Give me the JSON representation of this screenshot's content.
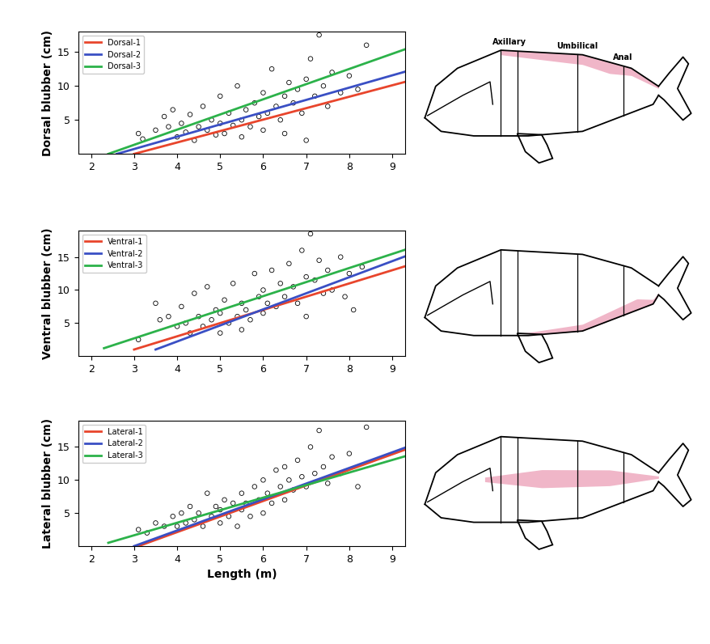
{
  "chart_data": [
    {
      "type": "scatter",
      "y_label": "Dorsal blubber (cm)",
      "xlim": [
        1.7,
        9.3
      ],
      "ylim": [
        0,
        18
      ],
      "xticks": [
        2,
        3,
        4,
        5,
        6,
        7,
        8,
        9
      ],
      "yticks": [
        5,
        10,
        15
      ],
      "legend": "upper left",
      "series": [
        {
          "type": "scatter",
          "color": "#000000",
          "marker": "circle",
          "x": [
            3.1,
            3.2,
            3.5,
            3.7,
            3.8,
            3.9,
            4.0,
            4.1,
            4.2,
            4.3,
            4.4,
            4.5,
            4.6,
            4.7,
            4.8,
            4.9,
            5.0,
            5.0,
            5.1,
            5.2,
            5.3,
            5.4,
            5.5,
            5.5,
            5.6,
            5.7,
            5.8,
            5.9,
            6.0,
            6.0,
            6.1,
            6.2,
            6.3,
            6.4,
            6.5,
            6.5,
            6.6,
            6.7,
            6.8,
            6.9,
            7.0,
            7.0,
            7.1,
            7.2,
            7.3,
            7.4,
            7.5,
            7.6,
            7.8,
            8.0,
            8.2,
            8.4
          ],
          "values": [
            3.0,
            2.2,
            3.5,
            5.5,
            4.0,
            6.5,
            2.5,
            4.5,
            3.2,
            5.8,
            2.0,
            4.0,
            7.0,
            3.5,
            5.0,
            2.8,
            4.5,
            8.5,
            3.0,
            6.0,
            4.2,
            10.0,
            5.0,
            2.5,
            6.5,
            4.0,
            7.5,
            5.5,
            3.5,
            9.0,
            6.0,
            12.5,
            7.0,
            5.0,
            8.5,
            3.0,
            10.5,
            7.5,
            9.5,
            6.0,
            11.0,
            2.0,
            14.0,
            8.5,
            17.5,
            10.0,
            7.0,
            12.0,
            9.0,
            11.5,
            9.5,
            16.0
          ]
        },
        {
          "name": "Dorsal-1",
          "type": "line",
          "color": "#e8452c",
          "line_style": "solid",
          "x": [
            3.0,
            9.3
          ],
          "values": [
            0,
            10.6
          ]
        },
        {
          "name": "Dorsal-2",
          "type": "line",
          "color": "#3a4fc4",
          "line_style": "solid",
          "x": [
            2.6,
            9.3
          ],
          "values": [
            0,
            12.1
          ]
        },
        {
          "name": "Dorsal-3",
          "type": "line",
          "color": "#2cb24a",
          "line_style": "solid",
          "x": [
            2.4,
            9.3
          ],
          "values": [
            0,
            15.4
          ]
        }
      ]
    },
    {
      "type": "scatter",
      "y_label": "Ventral blubber (cm)",
      "xlim": [
        1.7,
        9.3
      ],
      "ylim": [
        0,
        19
      ],
      "xticks": [
        2,
        3,
        4,
        5,
        6,
        7,
        8,
        9
      ],
      "yticks": [
        5,
        10,
        15
      ],
      "legend": "upper left",
      "series": [
        {
          "type": "scatter",
          "color": "#000000",
          "marker": "circle",
          "x": [
            3.1,
            3.5,
            3.6,
            3.8,
            4.0,
            4.1,
            4.2,
            4.3,
            4.4,
            4.5,
            4.6,
            4.7,
            4.8,
            4.9,
            5.0,
            5.0,
            5.1,
            5.2,
            5.3,
            5.4,
            5.5,
            5.5,
            5.6,
            5.7,
            5.8,
            5.9,
            6.0,
            6.0,
            6.1,
            6.2,
            6.3,
            6.4,
            6.5,
            6.6,
            6.7,
            6.8,
            6.9,
            7.0,
            7.0,
            7.1,
            7.2,
            7.3,
            7.4,
            7.5,
            7.6,
            7.8,
            7.9,
            8.0,
            8.1,
            8.3
          ],
          "values": [
            2.5,
            8.0,
            5.5,
            6.0,
            4.5,
            7.5,
            5.0,
            3.5,
            9.5,
            6.0,
            4.5,
            10.5,
            5.5,
            7.0,
            3.5,
            6.5,
            8.5,
            5.0,
            11.0,
            6.0,
            4.0,
            8.0,
            7.0,
            5.5,
            12.5,
            9.0,
            6.5,
            10.0,
            8.0,
            13.0,
            7.5,
            11.0,
            9.0,
            14.0,
            10.5,
            8.0,
            16.0,
            12.0,
            6.0,
            18.5,
            11.5,
            14.5,
            9.5,
            13.0,
            10.0,
            15.0,
            9.0,
            12.5,
            7.0,
            13.5
          ]
        },
        {
          "name": "Ventral-1",
          "type": "line",
          "color": "#e8452c",
          "line_style": "solid",
          "x": [
            3.0,
            9.3
          ],
          "values": [
            1.0,
            13.6
          ]
        },
        {
          "name": "Ventral-2",
          "type": "line",
          "color": "#3a4fc4",
          "line_style": "solid",
          "x": [
            3.5,
            9.3
          ],
          "values": [
            1.0,
            15.1
          ]
        },
        {
          "name": "Ventral-3",
          "type": "line",
          "color": "#2cb24a",
          "line_style": "solid",
          "x": [
            2.3,
            9.3
          ],
          "values": [
            1.2,
            16.1
          ]
        }
      ]
    },
    {
      "type": "scatter",
      "y_label": "Lateral blubber (cm)",
      "x_label": "Length (m)",
      "xlim": [
        1.7,
        9.3
      ],
      "ylim": [
        0,
        19
      ],
      "xticks": [
        2,
        3,
        4,
        5,
        6,
        7,
        8,
        9
      ],
      "yticks": [
        5,
        10,
        15
      ],
      "legend": "upper left",
      "series": [
        {
          "type": "scatter",
          "color": "#000000",
          "marker": "circle",
          "x": [
            3.1,
            3.3,
            3.5,
            3.7,
            3.9,
            4.0,
            4.1,
            4.2,
            4.3,
            4.4,
            4.5,
            4.6,
            4.7,
            4.8,
            4.9,
            5.0,
            5.0,
            5.1,
            5.2,
            5.3,
            5.4,
            5.5,
            5.5,
            5.6,
            5.7,
            5.8,
            5.9,
            6.0,
            6.0,
            6.1,
            6.2,
            6.3,
            6.4,
            6.5,
            6.5,
            6.6,
            6.7,
            6.8,
            6.9,
            7.0,
            7.1,
            7.2,
            7.3,
            7.4,
            7.5,
            7.6,
            7.8,
            8.0,
            8.2,
            8.4
          ],
          "values": [
            2.5,
            2.0,
            3.5,
            3.0,
            4.5,
            3.0,
            5.0,
            3.5,
            6.0,
            4.0,
            5.0,
            3.0,
            8.0,
            4.5,
            6.0,
            3.5,
            5.5,
            7.0,
            4.5,
            6.5,
            3.0,
            5.5,
            8.0,
            6.5,
            4.5,
            9.0,
            7.0,
            5.0,
            10.0,
            8.0,
            6.5,
            11.5,
            9.0,
            7.0,
            12.0,
            10.0,
            8.5,
            13.0,
            10.5,
            9.0,
            15.0,
            11.0,
            17.5,
            12.0,
            9.5,
            13.5,
            11.0,
            14.0,
            9.0,
            18.0
          ]
        },
        {
          "name": "Lateral-1",
          "type": "line",
          "color": "#e8452c",
          "line_style": "solid",
          "x": [
            3.1,
            9.3
          ],
          "values": [
            0,
            14.6
          ]
        },
        {
          "name": "Lateral-2",
          "type": "line",
          "color": "#3a4fc4",
          "line_style": "solid",
          "x": [
            3.0,
            9.3
          ],
          "values": [
            0,
            14.9
          ]
        },
        {
          "name": "Lateral-3",
          "type": "line",
          "color": "#2cb24a",
          "line_style": "solid",
          "x": [
            2.4,
            9.3
          ],
          "values": [
            0.5,
            13.6
          ]
        }
      ]
    }
  ],
  "diagram": {
    "section_labels": [
      "Axillary",
      "Umbilical",
      "Anal"
    ]
  }
}
